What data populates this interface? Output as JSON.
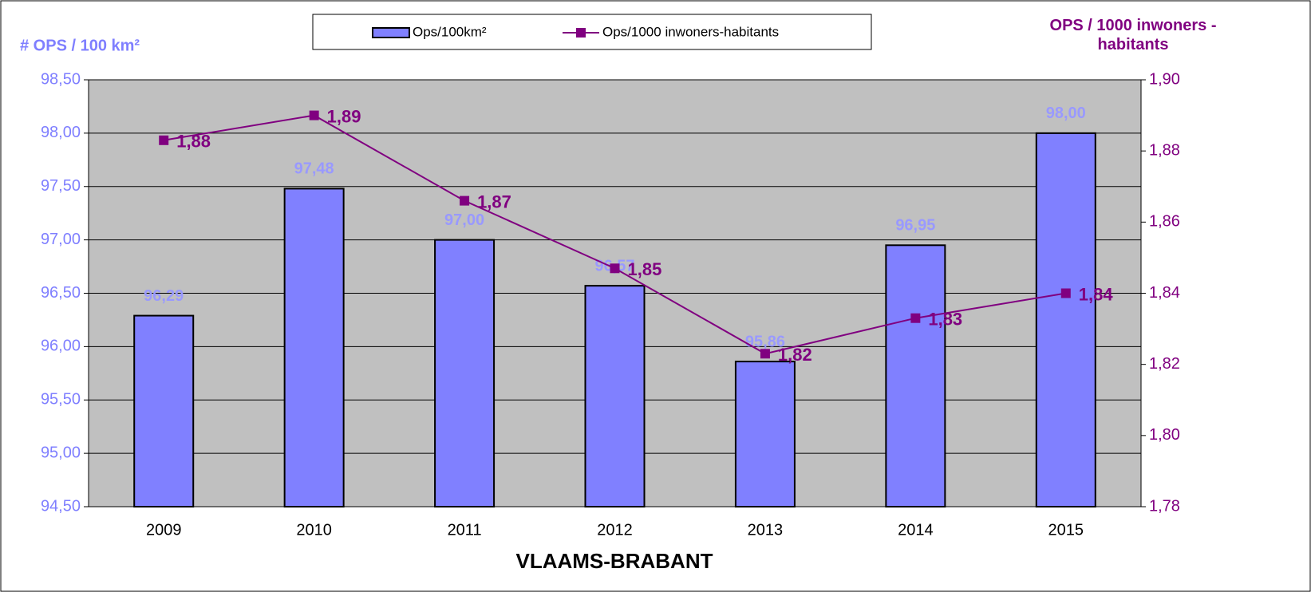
{
  "chart_data": {
    "type": "bar-line",
    "x_axis_label": "VLAAMS-BRABANT",
    "y_axis_label": "# OPS / 100 km²",
    "y2_axis_label": "OPS / 1000 inwoners - habitants",
    "categories": [
      "2009",
      "2010",
      "2011",
      "2012",
      "2013",
      "2014",
      "2015"
    ],
    "series": [
      {
        "name": "Ops/100km²",
        "type": "bar",
        "color": "#8080ff",
        "label_color": "#9999ff",
        "values": [
          96.29,
          97.48,
          97.0,
          96.57,
          95.86,
          96.95,
          98.0
        ],
        "value_labels": [
          "96,29",
          "97,48",
          "97,00",
          "96,57",
          "95,86",
          "96,95",
          "98,00"
        ]
      },
      {
        "name": "Ops/1000 inwoners-habitants",
        "type": "line",
        "axis": "y2",
        "color": "#800080",
        "values": [
          1.883,
          1.89,
          1.866,
          1.847,
          1.823,
          1.833,
          1.84
        ],
        "value_labels": [
          "1,88",
          "1,89",
          "1,87",
          "1,85",
          "1,82",
          "1,83",
          "1,84"
        ]
      }
    ],
    "ylim": [
      94.5,
      98.5
    ],
    "yticks": [
      {
        "value": 94.5,
        "label": "94,50"
      },
      {
        "value": 95,
        "label": "95,00"
      },
      {
        "value": 95.5,
        "label": "95,50"
      },
      {
        "value": 96,
        "label": "96,00"
      },
      {
        "value": 96.5,
        "label": "96,50"
      },
      {
        "value": 97,
        "label": "97,00"
      },
      {
        "value": 97.5,
        "label": "97,50"
      },
      {
        "value": 98,
        "label": "98,00"
      },
      {
        "value": 98.5,
        "label": "98,50"
      }
    ],
    "y2lim": [
      1.78,
      1.9
    ],
    "y2ticks": [
      {
        "value": 1.78,
        "label": "1,78"
      },
      {
        "value": 1.8,
        "label": "1,80"
      },
      {
        "value": 1.82,
        "label": "1,82"
      },
      {
        "value": 1.84,
        "label": "1,84"
      },
      {
        "value": 1.86,
        "label": "1,86"
      },
      {
        "value": 1.88,
        "label": "1,88"
      },
      {
        "value": 1.9,
        "label": "1,90"
      }
    ],
    "grid": true,
    "legend": "top",
    "plot_background": "#c0c0c0"
  }
}
